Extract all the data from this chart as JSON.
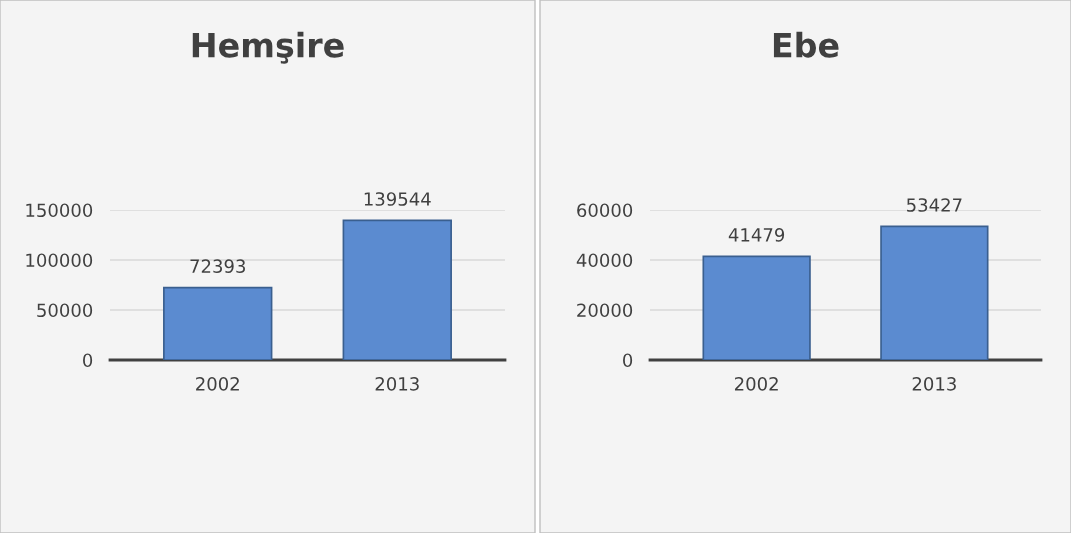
{
  "chart_data": [
    {
      "type": "bar",
      "title": "Hemşire",
      "categories": [
        "2002",
        "2013"
      ],
      "values": [
        72393,
        139544
      ],
      "color": "#5b8bd0",
      "ylim": [
        0,
        150000
      ],
      "yticks": [
        0,
        50000,
        100000,
        150000
      ],
      "grid": "y",
      "data_labels": true
    },
    {
      "type": "bar",
      "title": "Ebe",
      "categories": [
        "2002",
        "2013"
      ],
      "values": [
        41479,
        53427
      ],
      "color": "#5b8bd0",
      "ylim": [
        0,
        60000
      ],
      "yticks": [
        0,
        20000,
        40000,
        60000
      ],
      "grid": "y",
      "data_labels": true
    }
  ]
}
